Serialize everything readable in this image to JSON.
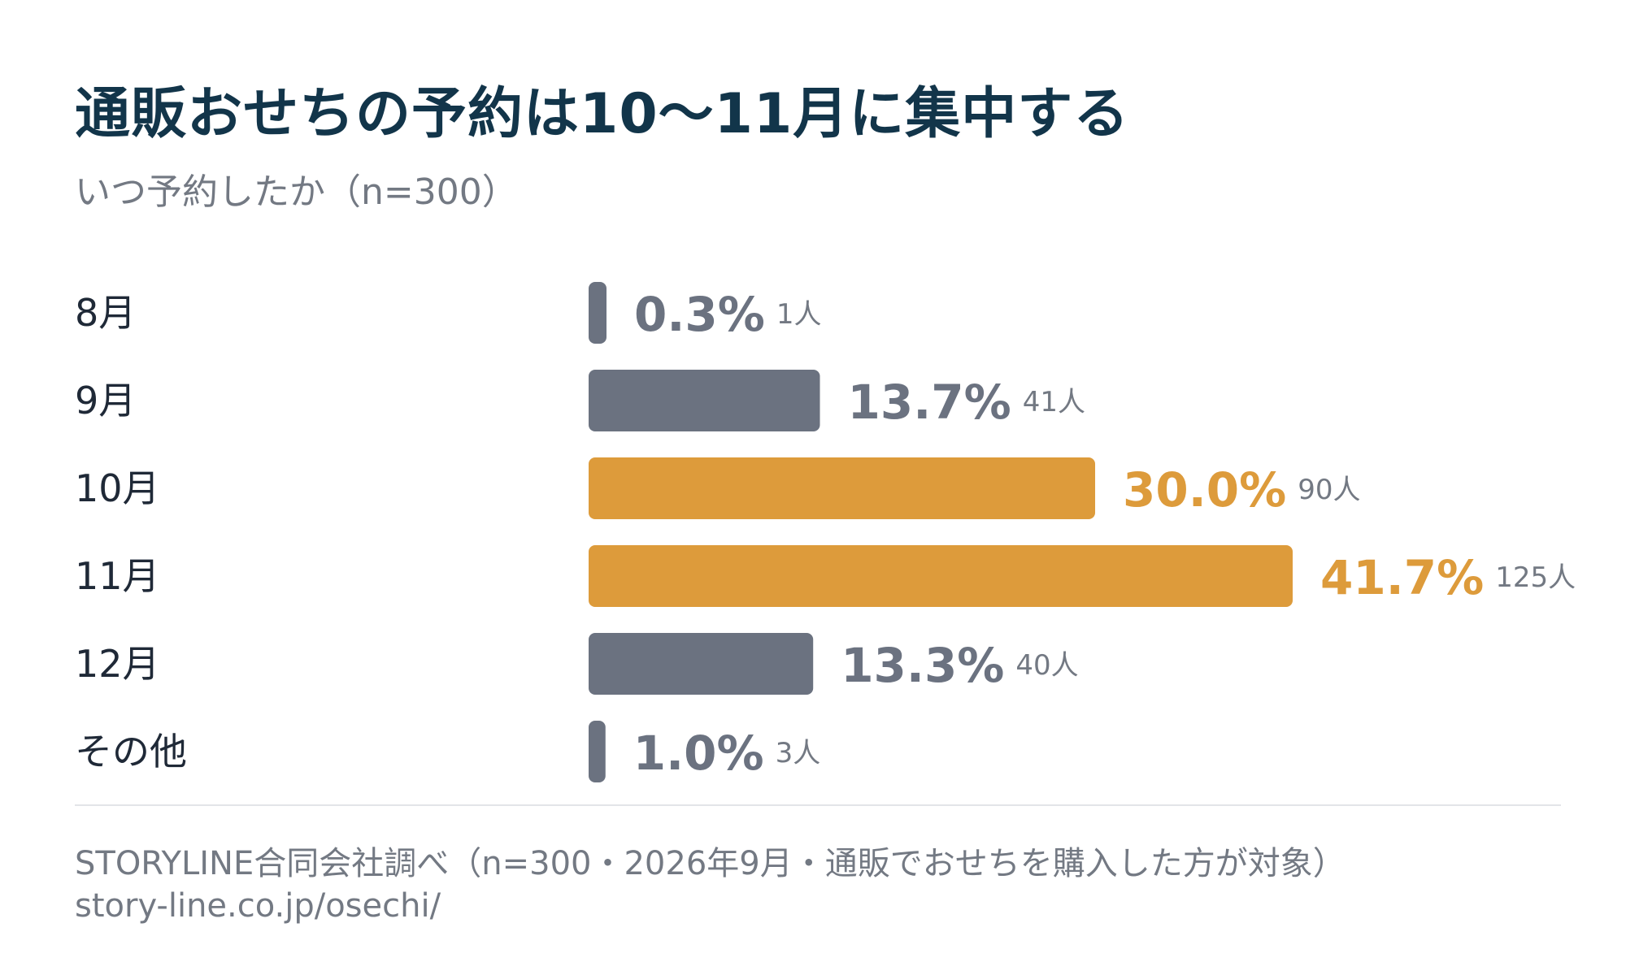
{
  "title": "通販おせちの予約は10〜11月に集中する",
  "subtitle": "いつ予約したか（n=300）",
  "colors": {
    "highlight": "#dd9b3b",
    "normal": "#6b7280",
    "label": "#1f2937",
    "muted": "#737983",
    "title": "#12354a"
  },
  "chart_data": {
    "type": "bar",
    "orientation": "horizontal",
    "categories": [
      "8月",
      "9月",
      "10月",
      "11月",
      "12月",
      "その他"
    ],
    "values": [
      0.3,
      13.7,
      30.0,
      41.7,
      13.3,
      1.0
    ],
    "value_labels": [
      "0.3%",
      "13.7%",
      "30.0%",
      "41.7%",
      "13.3%",
      "1.0%"
    ],
    "counts": [
      "1人",
      "41人",
      "90人",
      "125人",
      "40人",
      "3人"
    ],
    "highlighted": [
      false,
      false,
      true,
      true,
      false,
      false
    ],
    "xlim": [
      0,
      41.7
    ],
    "grid": false
  },
  "footer": {
    "source": "STORYLINE合同会社調べ（n=300・2026年9月・通販でおせちを購入した方が対象）",
    "url": "story-line.co.jp/osechi/"
  }
}
